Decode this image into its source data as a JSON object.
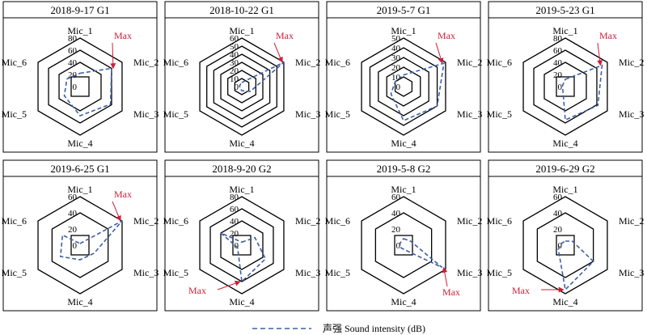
{
  "legend": {
    "label": "声强 Sound intensity (dB)"
  },
  "colors": {
    "series": "#3f5fa5",
    "max": "#cc1f3a",
    "grid": "#000000"
  },
  "chart_data": [
    {
      "type": "radar",
      "title": "2018-9-17 G1",
      "axes": [
        "Mic_1",
        "Mic_2",
        "Mic_3",
        "Mic_4",
        "Mic_5",
        "Mic_6"
      ],
      "ticks": [
        0,
        20,
        40,
        60,
        80
      ],
      "rmax": 80,
      "hex_rings": [
        40,
        60,
        80
      ],
      "small_ring": 20,
      "values": [
        22,
        60,
        58,
        48,
        30,
        25
      ],
      "max_axis": 1,
      "max_label": "Max"
    },
    {
      "type": "radar",
      "title": "2018-10-22 G1",
      "axes": [
        "Mic_1",
        "Mic_2",
        "Mic_3",
        "Mic_4",
        "Mic_5",
        "Mic_6"
      ],
      "ticks": [
        0,
        10,
        20,
        30,
        40,
        50,
        60
      ],
      "rmax": 60,
      "hex_rings": [
        10,
        20,
        30,
        40,
        50,
        60
      ],
      "small_ring": null,
      "values": [
        5,
        60,
        12,
        5,
        3,
        3
      ],
      "max_axis": 1,
      "max_label": "Max"
    },
    {
      "type": "radar",
      "title": "2019-5-7 G1",
      "axes": [
        "Mic_1",
        "Mic_2",
        "Mic_3",
        "Mic_4",
        "Mic_5",
        "Mic_6"
      ],
      "ticks": [
        0,
        10,
        20,
        30,
        40,
        50
      ],
      "rmax": 50,
      "hex_rings": [
        10,
        20,
        30,
        40,
        50
      ],
      "small_ring": null,
      "values": [
        12,
        48,
        40,
        35,
        15,
        10
      ],
      "max_axis": 1,
      "max_label": "Max"
    },
    {
      "type": "radar",
      "title": "2019-5-23 G1",
      "axes": [
        "Mic_1",
        "Mic_2",
        "Mic_3",
        "Mic_4",
        "Mic_5",
        "Mic_6"
      ],
      "ticks": [
        0,
        20,
        40,
        60,
        80
      ],
      "rmax": 80,
      "hex_rings": [
        40,
        60,
        80
      ],
      "small_ring": 20,
      "values": [
        12,
        70,
        62,
        55,
        5,
        5
      ],
      "max_axis": 1,
      "max_label": "Max"
    },
    {
      "type": "radar",
      "title": "2019-6-25 G1",
      "axes": [
        "Mic_1",
        "Mic_2",
        "Mic_3",
        "Mic_4",
        "Mic_5",
        "Mic_6"
      ],
      "ticks": [
        0,
        20,
        40,
        60
      ],
      "rmax": 60,
      "hex_rings": [
        40,
        60
      ],
      "small_ring": 20,
      "values": [
        2,
        60,
        20,
        18,
        28,
        25
      ],
      "max_axis": 1,
      "max_label": "Max"
    },
    {
      "type": "radar",
      "title": "2018-9-20 G2",
      "axes": [
        "Mic_1",
        "Mic_2",
        "Mic_3",
        "Mic_4",
        "Mic_5",
        "Mic_6"
      ],
      "ticks": [
        0,
        20,
        40,
        60,
        80
      ],
      "rmax": 80,
      "hex_rings": [
        40,
        60,
        80
      ],
      "small_ring": 20,
      "values": [
        5,
        25,
        45,
        60,
        8,
        40
      ],
      "max_axis": 3,
      "max_label": "Max"
    },
    {
      "type": "radar",
      "title": "2019-5-8 G2",
      "axes": [
        "Mic_1",
        "Mic_2",
        "Mic_3",
        "Mic_4",
        "Mic_5",
        "Mic_6"
      ],
      "ticks": [
        0,
        20,
        40,
        60
      ],
      "rmax": 60,
      "hex_rings": [
        40,
        60
      ],
      "small_ring": 20,
      "values": [
        8,
        10,
        55,
        5,
        5,
        5
      ],
      "max_axis": 2,
      "max_label": "Max"
    },
    {
      "type": "radar",
      "title": "2019-6-29 G2",
      "axes": [
        "Mic_1",
        "Mic_2",
        "Mic_3",
        "Mic_4",
        "Mic_5",
        "Mic_6"
      ],
      "ticks": [
        0,
        20,
        40,
        60
      ],
      "rmax": 60,
      "hex_rings": [
        40,
        60
      ],
      "small_ring": 20,
      "values": [
        5,
        10,
        40,
        55,
        10,
        5
      ],
      "max_axis": 3,
      "max_label": "Max"
    }
  ]
}
